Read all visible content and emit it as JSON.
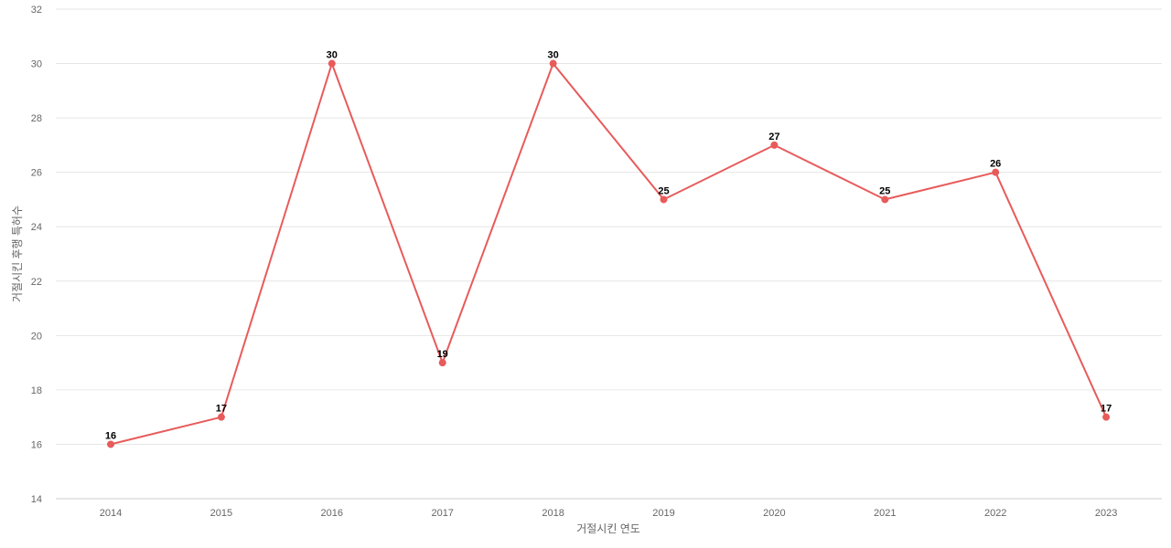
{
  "chart_data": {
    "type": "line",
    "title": "",
    "xlabel": "거절시킨 연도",
    "ylabel": "거절시킨 후행 특허수",
    "categories": [
      "2014",
      "2015",
      "2016",
      "2017",
      "2018",
      "2019",
      "2020",
      "2021",
      "2022",
      "2023"
    ],
    "series": [
      {
        "values": [
          16,
          17,
          30,
          19,
          30,
          25,
          27,
          25,
          26,
          17
        ],
        "color": "#e85b5b"
      }
    ],
    "ylim": [
      14,
      32
    ],
    "yticks": [
      14,
      16,
      18,
      20,
      22,
      24,
      26,
      28,
      30,
      32
    ],
    "grid": true,
    "data_labels": true
  }
}
